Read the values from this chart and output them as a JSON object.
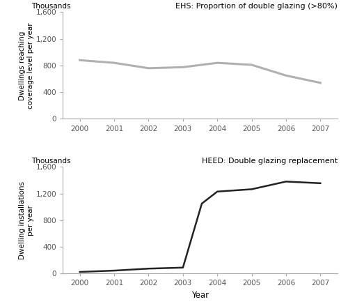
{
  "ehs_years": [
    2000,
    2001,
    2002,
    2003,
    2004,
    2005,
    2006,
    2007
  ],
  "ehs_values": [
    880,
    840,
    760,
    775,
    840,
    810,
    650,
    540
  ],
  "ehs_label": "EHS: Proportion of double glazing (>80%)",
  "ehs_ylabel_line1": "Dwellings reaching",
  "ehs_ylabel_line2": "coverage level per year",
  "ehs_thousands": "Thousands",
  "ehs_color": "#b0b0b0",
  "ehs_linewidth": 2.2,
  "heed_years": [
    2000,
    2001,
    2002,
    2003,
    2003.55,
    2004,
    2005,
    2006,
    2007
  ],
  "heed_values": [
    25,
    45,
    75,
    90,
    1050,
    1230,
    1265,
    1380,
    1355
  ],
  "heed_label": "HEED: Double glazing replacement",
  "heed_ylabel_line1": "Dwelling installations",
  "heed_ylabel_line2": "per year",
  "heed_thousands": "Thousands",
  "heed_color": "#222222",
  "heed_linewidth": 1.8,
  "ylim": [
    0,
    1600
  ],
  "yticks": [
    0,
    400,
    800,
    1200,
    1600
  ],
  "ytick_labels": [
    "0",
    "400",
    "800",
    "1,200",
    "1,600"
  ],
  "xlabel": "Year",
  "bg_color": "#ffffff",
  "spine_color": "#aaaaaa",
  "tick_color": "#555555",
  "label_fontsize": 7.5,
  "tick_fontsize": 7.5,
  "thousands_fontsize": 7.5,
  "legend_fontsize": 8.0
}
